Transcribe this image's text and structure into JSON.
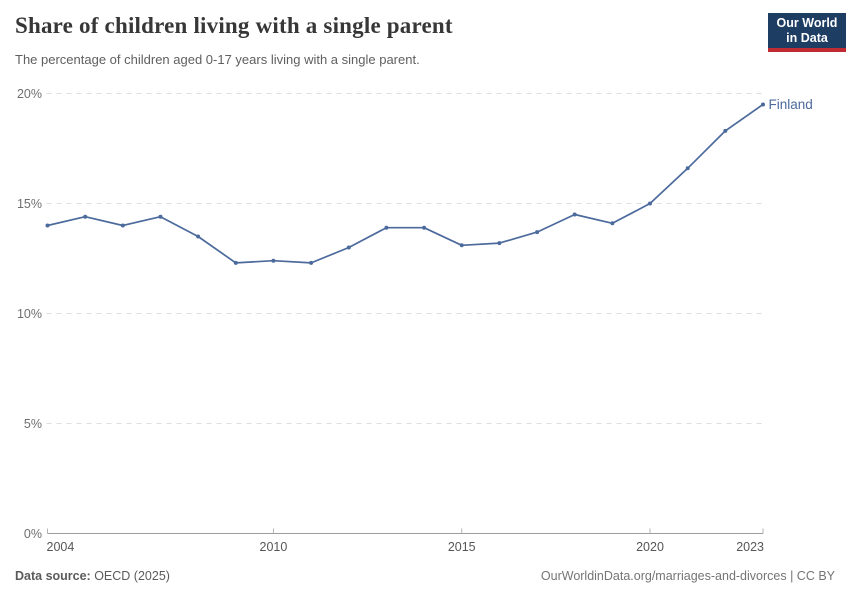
{
  "header": {
    "title": "Share of children living with a single parent",
    "subtitle": "The percentage of children aged 0-17 years living with a single parent.",
    "logo": {
      "line1": "Our World",
      "line2": "in Data"
    }
  },
  "chart_data": {
    "type": "line",
    "title": "Share of children living with a single parent",
    "xlabel": "",
    "ylabel": "",
    "x": [
      2004,
      2005,
      2006,
      2007,
      2008,
      2009,
      2010,
      2011,
      2012,
      2013,
      2014,
      2015,
      2016,
      2017,
      2018,
      2019,
      2020,
      2021,
      2022,
      2023
    ],
    "series": [
      {
        "name": "Finland",
        "color": "#4c6a9c",
        "values": [
          14.0,
          14.4,
          14.0,
          14.4,
          13.5,
          12.3,
          12.4,
          12.3,
          13.0,
          13.9,
          13.9,
          13.1,
          13.2,
          13.7,
          14.5,
          14.1,
          15.0,
          16.6,
          18.3,
          19.5
        ]
      }
    ],
    "xlim": [
      2004,
      2023
    ],
    "ylim": [
      0,
      20
    ],
    "x_ticks": [
      2004,
      2010,
      2015,
      2020,
      2023
    ],
    "y_ticks": [
      0,
      5,
      10,
      15,
      20
    ],
    "y_tick_suffix": "%",
    "grid": "horizontal-dashed",
    "legend_position": "end-of-line-label"
  },
  "footer": {
    "source_label": "Data source:",
    "source_value": " OECD (2025)",
    "link": "OurWorldinData.org/marriages-and-divorces | CC BY"
  },
  "colors": {
    "series_blue": "#4c6a9c",
    "logo_navy": "#1d3d63",
    "logo_red": "#bf2a33",
    "gridline": "#dedede",
    "axis_line": "#9e9e9e",
    "tick_mark": "#b3b3b3",
    "y_tick_label": "#6e6e6e",
    "x_tick_label": "#565656"
  }
}
